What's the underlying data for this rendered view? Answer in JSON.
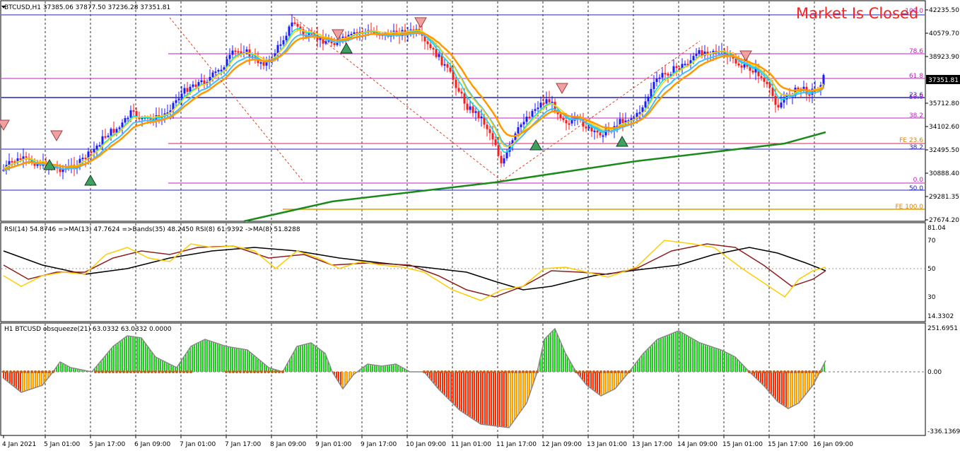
{
  "header": {
    "symbol_info": "BTCUSD,H1  37385.06 37877.50 37236.28 37351.81",
    "market_status": "Market Is Closed"
  },
  "price_panel": {
    "current_price": "37351.81",
    "y_axis_labels": [
      "42235.50",
      "40579.70",
      "38923.90",
      "37351.81",
      "35712.80",
      "34102.60",
      "32495.50",
      "30888.40",
      "29281.35",
      "27674.20"
    ],
    "fib_labels": [
      {
        "text": "100.0",
        "color": "#c020c0"
      },
      {
        "text": "78.6",
        "color": "#c020c0"
      },
      {
        "text": "61.8",
        "color": "#c020c0"
      },
      {
        "text": "23.6",
        "color": "#2020c0"
      },
      {
        "text": "50.0",
        "color": "#c020c0"
      },
      {
        "text": "38.2",
        "color": "#c020c0"
      },
      {
        "text": "FE 23.6",
        "color": "#e08000"
      },
      {
        "text": "38.2",
        "color": "#2020c0"
      },
      {
        "text": "0.0",
        "color": "#c020c0"
      },
      {
        "text": "50.0",
        "color": "#2020c0"
      },
      {
        "text": "FE 100.0",
        "color": "#e08000"
      }
    ]
  },
  "rsi_panel": {
    "label": "RSI(14) 54.8746  =>MA(13) 47.7624  =>Bands(35) 48.2450  RSI(8) 61.9392  ->MA(8) 51.8288",
    "y_axis_labels": [
      "81.04",
      "70",
      "50",
      "30",
      "14.3302"
    ]
  },
  "squeeze_panel": {
    "label": "H1 BTCUSD obsqueeze(21) 63.0332 63.0332 0.0000",
    "y_axis_labels": [
      "251.6951",
      "0.00",
      "-336.1369"
    ]
  },
  "x_axis_labels": [
    "4 Jan 2021",
    "5 Jan 01:00",
    "5 Jan 17:00",
    "6 Jan 09:00",
    "7 Jan 01:00",
    "7 Jan 17:00",
    "8 Jan 09:00",
    "9 Jan 01:00",
    "9 Jan 17:00",
    "10 Jan 09:00",
    "11 Jan 01:00",
    "11 Jan 17:00",
    "12 Jan 09:00",
    "13 Jan 01:00",
    "13 Jan 17:00",
    "14 Jan 09:00",
    "15 Jan 01:00",
    "15 Jan 17:00",
    "16 Jan 09:00"
  ],
  "colors": {
    "bull": "#1a1aff",
    "bear": "#ff1a1a",
    "ma_fast": "#40c0ff",
    "ma_slow": "#ff9900",
    "trend": "#1a8a1a",
    "rsi_yellow": "#ffcc00",
    "rsi_brown": "#8b2020",
    "rsi_black": "#000000",
    "sq_green": "#22cc22",
    "sq_red": "#ff2a00",
    "sq_orange": "#ffa000"
  }
}
